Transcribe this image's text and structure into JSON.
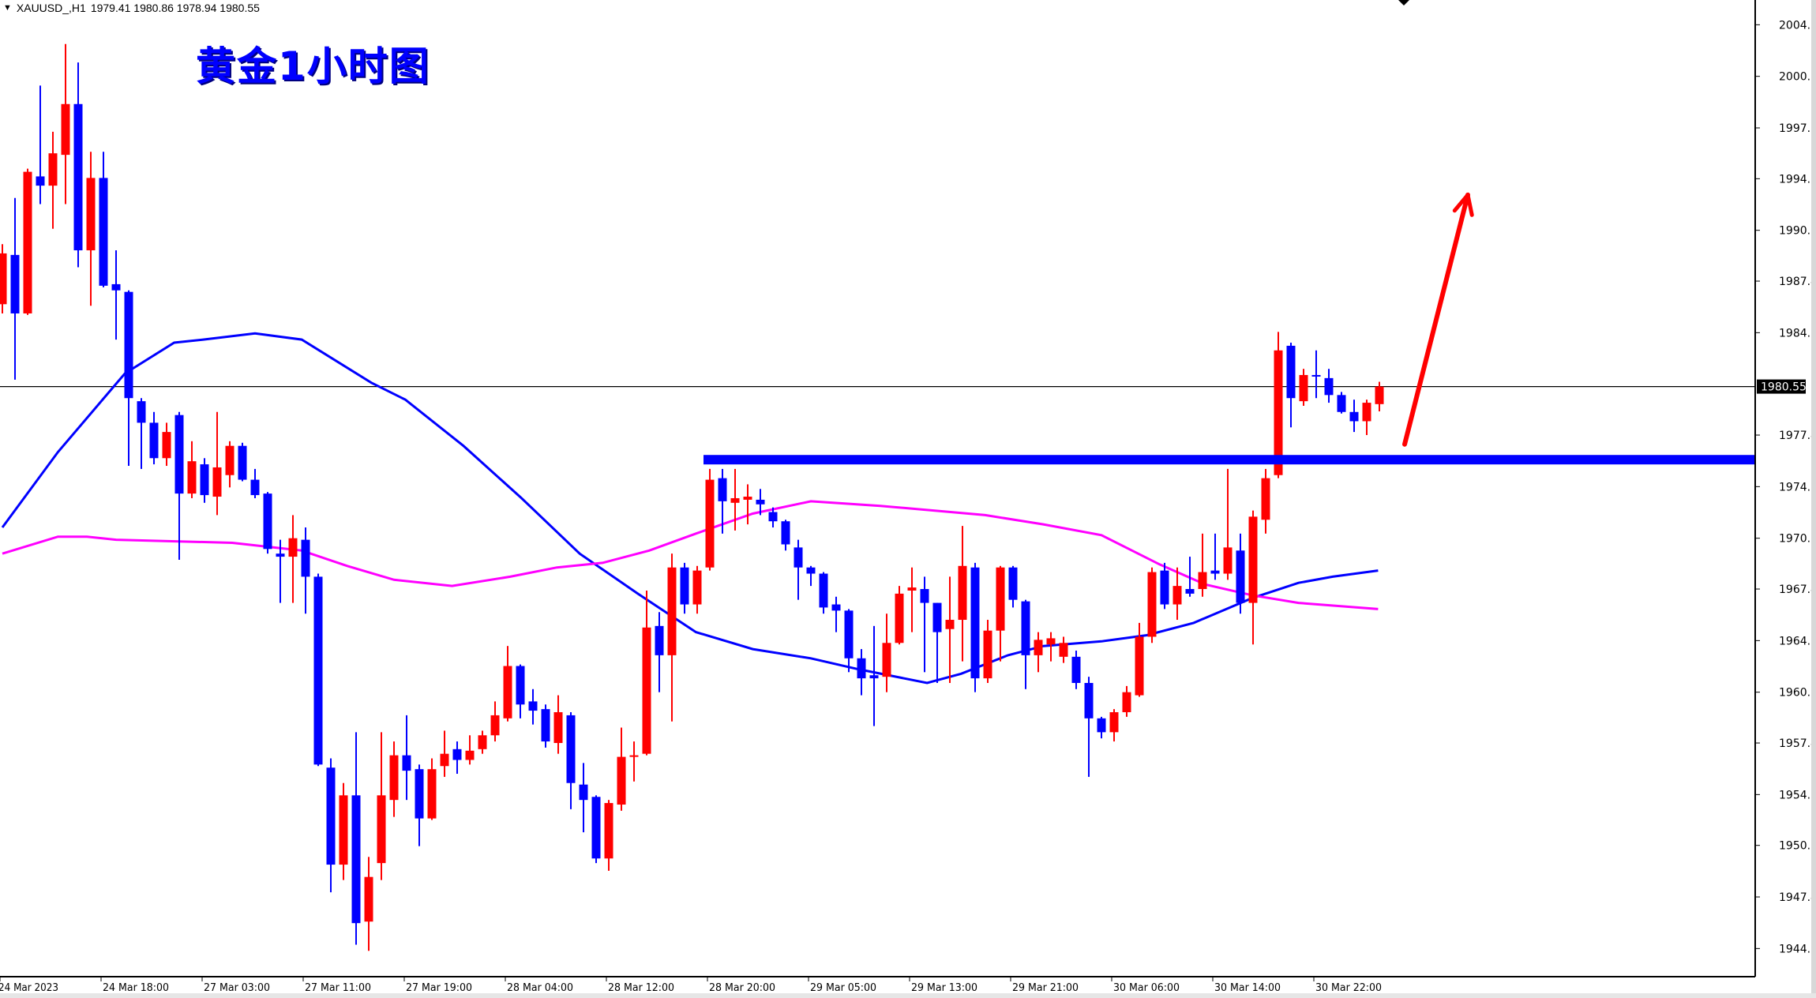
{
  "header": {
    "symbol": "XAUUSD_,H1",
    "ohlc": "1979.41 1980.86 1978.94 1980.55"
  },
  "title": "黄金1小时图",
  "colors": {
    "bull": "#ff0000",
    "bear": "#0000ff",
    "ma_fast": "#0000ff",
    "ma_slow": "#ff00ff",
    "support_line": "#0000ff",
    "arrow": "#ff0000"
  },
  "chart_data": {
    "type": "candlestick",
    "title": "黄金1小时图",
    "symbol": "XAUUSD_,H1",
    "current_price_label": "1980.55",
    "current_price": 1980.55,
    "ylim": [
      1942.3,
      2006.0
    ],
    "y_ticks": [
      "2004.05",
      "2000.70",
      "1997.35",
      "1994.05",
      "1990.70",
      "1987.40",
      "1984.05",
      "1977.40",
      "1974.05",
      "1970.70",
      "1967.40",
      "1964.05",
      "1960.70",
      "1957.40",
      "1954.05",
      "1950.75",
      "1947.40",
      "1944.05"
    ],
    "x_ticks": [
      {
        "index": 0,
        "label": "24 Mar 2023"
      },
      {
        "index": 8,
        "label": "24 Mar 18:00"
      },
      {
        "index": 16,
        "label": "27 Mar 03:00"
      },
      {
        "index": 24,
        "label": "27 Mar 11:00"
      },
      {
        "index": 32,
        "label": "27 Mar 19:00"
      },
      {
        "index": 40,
        "label": "28 Mar 04:00"
      },
      {
        "index": 48,
        "label": "28 Mar 12:00"
      },
      {
        "index": 56,
        "label": "28 Mar 20:00"
      },
      {
        "index": 64,
        "label": "29 Mar 05:00"
      },
      {
        "index": 72,
        "label": "29 Mar 13:00"
      },
      {
        "index": 80,
        "label": "29 Mar 21:00"
      },
      {
        "index": 88,
        "label": "30 Mar 06:00"
      },
      {
        "index": 96,
        "label": "30 Mar 14:00"
      },
      {
        "index": 104,
        "label": "30 Mar 22:00"
      }
    ],
    "ohlc": [
      [
        1985.9,
        1989.8,
        1985.3,
        1989.2
      ],
      [
        1989.1,
        1992.8,
        1981.0,
        1985.3
      ],
      [
        1985.3,
        1994.7,
        1985.2,
        1994.5
      ],
      [
        1994.2,
        2000.1,
        1992.4,
        1993.6
      ],
      [
        1993.6,
        1997.1,
        1990.8,
        1995.7
      ],
      [
        1995.6,
        2002.8,
        1992.4,
        1998.9
      ],
      [
        1998.9,
        2001.6,
        1988.3,
        1989.4
      ],
      [
        1989.4,
        1995.8,
        1985.8,
        1994.1
      ],
      [
        1994.1,
        1995.8,
        1987.0,
        1987.1
      ],
      [
        1987.2,
        1989.4,
        1983.6,
        1986.8
      ],
      [
        1986.7,
        1986.8,
        1975.4,
        1979.8
      ],
      [
        1979.6,
        1979.8,
        1975.2,
        1978.2
      ],
      [
        1978.2,
        1978.9,
        1975.5,
        1975.9
      ],
      [
        1975.9,
        1978.2,
        1975.4,
        1977.6
      ],
      [
        1978.7,
        1978.9,
        1969.3,
        1973.6
      ],
      [
        1973.6,
        1977.0,
        1973.3,
        1975.7
      ],
      [
        1975.5,
        1975.9,
        1973.0,
        1973.5
      ],
      [
        1973.4,
        1978.9,
        1972.2,
        1975.3
      ],
      [
        1974.8,
        1977.0,
        1974.0,
        1976.7
      ],
      [
        1976.7,
        1976.9,
        1974.4,
        1974.5
      ],
      [
        1974.5,
        1975.2,
        1973.3,
        1973.5
      ],
      [
        1973.6,
        1973.7,
        1969.7,
        1970.0
      ],
      [
        1969.7,
        1970.6,
        1966.5,
        1969.5
      ],
      [
        1969.5,
        1972.2,
        1966.5,
        1970.7
      ],
      [
        1970.6,
        1971.4,
        1965.8,
        1968.2
      ],
      [
        1968.2,
        1968.4,
        1955.9,
        1956.0
      ],
      [
        1955.8,
        1956.4,
        1947.7,
        1949.5
      ],
      [
        1949.5,
        1954.8,
        1948.5,
        1954.0
      ],
      [
        1954.0,
        1958.1,
        1944.3,
        1945.7
      ],
      [
        1945.8,
        1950.0,
        1943.9,
        1948.7
      ],
      [
        1949.6,
        1958.1,
        1948.5,
        1954.0
      ],
      [
        1953.7,
        1957.5,
        1952.6,
        1956.6
      ],
      [
        1956.6,
        1959.2,
        1953.7,
        1955.6
      ],
      [
        1955.7,
        1956.0,
        1950.7,
        1952.5
      ],
      [
        1952.5,
        1956.4,
        1952.4,
        1955.7
      ],
      [
        1955.9,
        1958.2,
        1955.2,
        1956.7
      ],
      [
        1957.0,
        1957.5,
        1955.4,
        1956.3
      ],
      [
        1956.3,
        1957.9,
        1956.0,
        1956.9
      ],
      [
        1957.0,
        1958.2,
        1956.7,
        1957.9
      ],
      [
        1957.9,
        1960.1,
        1957.5,
        1959.2
      ],
      [
        1959.0,
        1963.7,
        1958.8,
        1962.4
      ],
      [
        1962.4,
        1962.5,
        1959.0,
        1959.9
      ],
      [
        1960.1,
        1960.9,
        1958.6,
        1959.5
      ],
      [
        1959.6,
        1959.9,
        1957.1,
        1957.5
      ],
      [
        1957.4,
        1960.5,
        1956.7,
        1959.4
      ],
      [
        1959.2,
        1959.4,
        1953.1,
        1954.8
      ],
      [
        1954.7,
        1956.1,
        1951.6,
        1953.7
      ],
      [
        1953.9,
        1954.0,
        1949.6,
        1949.9
      ],
      [
        1949.9,
        1953.7,
        1949.1,
        1953.5
      ],
      [
        1953.4,
        1958.4,
        1953.0,
        1956.5
      ],
      [
        1956.5,
        1957.5,
        1954.9,
        1956.6
      ],
      [
        1956.7,
        1967.3,
        1956.6,
        1964.9
      ],
      [
        1965.0,
        1965.9,
        1960.7,
        1963.1
      ],
      [
        1963.1,
        1969.7,
        1958.8,
        1968.8
      ],
      [
        1968.8,
        1969.1,
        1965.8,
        1966.4
      ],
      [
        1966.4,
        1968.9,
        1965.8,
        1968.6
      ],
      [
        1968.8,
        1975.2,
        1968.6,
        1974.5
      ],
      [
        1974.6,
        1975.2,
        1971.0,
        1973.1
      ],
      [
        1973.0,
        1975.2,
        1971.2,
        1973.3
      ],
      [
        1973.2,
        1974.2,
        1971.6,
        1973.4
      ],
      [
        1973.2,
        1973.9,
        1972.2,
        1972.9
      ],
      [
        1972.4,
        1972.7,
        1971.4,
        1971.8
      ],
      [
        1971.8,
        1971.9,
        1969.9,
        1970.3
      ],
      [
        1970.1,
        1970.6,
        1966.7,
        1968.8
      ],
      [
        1968.8,
        1968.9,
        1967.6,
        1968.4
      ],
      [
        1968.4,
        1968.5,
        1965.8,
        1966.2
      ],
      [
        1966.4,
        1966.9,
        1964.6,
        1966.0
      ],
      [
        1966.0,
        1966.1,
        1962.0,
        1962.9
      ],
      [
        1962.9,
        1963.5,
        1960.5,
        1961.6
      ],
      [
        1961.8,
        1965.0,
        1958.5,
        1961.6
      ],
      [
        1961.7,
        1965.8,
        1960.7,
        1963.9
      ],
      [
        1963.9,
        1967.6,
        1963.8,
        1967.1
      ],
      [
        1967.3,
        1968.8,
        1964.6,
        1967.5
      ],
      [
        1967.4,
        1968.2,
        1962.0,
        1966.5
      ],
      [
        1966.5,
        1966.5,
        1961.3,
        1964.6
      ],
      [
        1964.8,
        1968.2,
        1961.3,
        1965.4
      ],
      [
        1965.4,
        1971.5,
        1962.7,
        1968.9
      ],
      [
        1968.8,
        1969.1,
        1960.7,
        1961.6
      ],
      [
        1961.6,
        1965.4,
        1961.3,
        1964.7
      ],
      [
        1964.7,
        1968.9,
        1962.7,
        1968.8
      ],
      [
        1968.8,
        1968.9,
        1966.2,
        1966.7
      ],
      [
        1966.6,
        1966.7,
        1960.9,
        1963.1
      ],
      [
        1963.1,
        1964.6,
        1962.0,
        1964.1
      ],
      [
        1963.8,
        1964.6,
        1962.7,
        1964.2
      ],
      [
        1963.0,
        1964.3,
        1962.6,
        1963.9
      ],
      [
        1963.0,
        1963.4,
        1960.9,
        1961.3
      ],
      [
        1961.3,
        1961.7,
        1955.2,
        1959.0
      ],
      [
        1959.0,
        1959.1,
        1957.7,
        1958.1
      ],
      [
        1958.1,
        1959.6,
        1957.5,
        1959.4
      ],
      [
        1959.4,
        1961.1,
        1959.1,
        1960.7
      ],
      [
        1960.5,
        1965.2,
        1960.4,
        1964.3
      ],
      [
        1964.3,
        1968.8,
        1963.9,
        1968.5
      ],
      [
        1968.6,
        1969.1,
        1966.1,
        1966.4
      ],
      [
        1966.4,
        1968.8,
        1965.4,
        1967.6
      ],
      [
        1967.4,
        1969.5,
        1966.9,
        1967.1
      ],
      [
        1967.4,
        1971.0,
        1966.9,
        1968.5
      ],
      [
        1968.6,
        1971.0,
        1968.0,
        1968.4
      ],
      [
        1968.4,
        1975.2,
        1968.0,
        1970.1
      ],
      [
        1969.9,
        1971.0,
        1965.8,
        1966.5
      ],
      [
        1966.5,
        1972.5,
        1963.8,
        1972.1
      ],
      [
        1971.9,
        1975.2,
        1971.0,
        1974.6
      ],
      [
        1974.8,
        1984.1,
        1974.6,
        1982.9
      ],
      [
        1983.2,
        1983.4,
        1977.9,
        1979.8
      ],
      [
        1979.6,
        1981.7,
        1979.3,
        1981.3
      ],
      [
        1981.3,
        1982.9,
        1979.8,
        1981.2
      ],
      [
        1981.1,
        1981.7,
        1979.5,
        1980.0
      ],
      [
        1980.0,
        1980.2,
        1978.8,
        1978.9
      ],
      [
        1978.9,
        1979.7,
        1977.6,
        1978.3
      ],
      [
        1978.3,
        1979.7,
        1977.4,
        1979.5
      ],
      [
        1979.41,
        1980.86,
        1978.94,
        1980.55
      ]
    ],
    "ma_fast": [
      [
        0,
        1971.4
      ],
      [
        4.4,
        1976.3
      ],
      [
        9.7,
        1981.4
      ],
      [
        13.6,
        1983.4
      ],
      [
        15.9,
        1983.6
      ],
      [
        20,
        1984.0
      ],
      [
        23.7,
        1983.6
      ],
      [
        29.2,
        1980.8
      ],
      [
        31.9,
        1979.7
      ],
      [
        36.5,
        1976.7
      ],
      [
        41.1,
        1973.3
      ],
      [
        45.7,
        1969.7
      ],
      [
        50.3,
        1967.1
      ],
      [
        54.9,
        1964.6
      ],
      [
        59.4,
        1963.5
      ],
      [
        64,
        1962.9
      ],
      [
        67.7,
        1962.2
      ],
      [
        73.2,
        1961.3
      ],
      [
        75.9,
        1961.9
      ],
      [
        79.6,
        1963.1
      ],
      [
        82.4,
        1963.7
      ],
      [
        87,
        1964.0
      ],
      [
        90.6,
        1964.4
      ],
      [
        94.3,
        1965.2
      ],
      [
        98.9,
        1966.8
      ],
      [
        102.6,
        1967.8
      ],
      [
        105.3,
        1968.2
      ],
      [
        108.9,
        1968.6
      ]
    ],
    "ma_slow": [
      [
        0,
        1969.7
      ],
      [
        4.4,
        1970.8
      ],
      [
        6.7,
        1970.8
      ],
      [
        9,
        1970.6
      ],
      [
        18.2,
        1970.4
      ],
      [
        23.7,
        1969.9
      ],
      [
        27.3,
        1968.9
      ],
      [
        31,
        1968.0
      ],
      [
        35.6,
        1967.6
      ],
      [
        40.2,
        1968.2
      ],
      [
        43.9,
        1968.8
      ],
      [
        47.5,
        1969.1
      ],
      [
        51.2,
        1969.9
      ],
      [
        54.9,
        1971.0
      ],
      [
        59.4,
        1972.3
      ],
      [
        64,
        1973.1
      ],
      [
        69.5,
        1972.8
      ],
      [
        77.8,
        1972.2
      ],
      [
        82.4,
        1971.6
      ],
      [
        87,
        1970.9
      ],
      [
        91.6,
        1969.0
      ],
      [
        95.2,
        1967.7
      ],
      [
        98.9,
        1967.0
      ],
      [
        102.6,
        1966.5
      ],
      [
        108.9,
        1966.1
      ]
    ],
    "support_line": {
      "price": 1975.8,
      "from_index": 55.5
    },
    "arrow": {
      "from": [
        111,
        1976.8
      ],
      "to": [
        116,
        1993.0
      ]
    },
    "grid": false
  }
}
